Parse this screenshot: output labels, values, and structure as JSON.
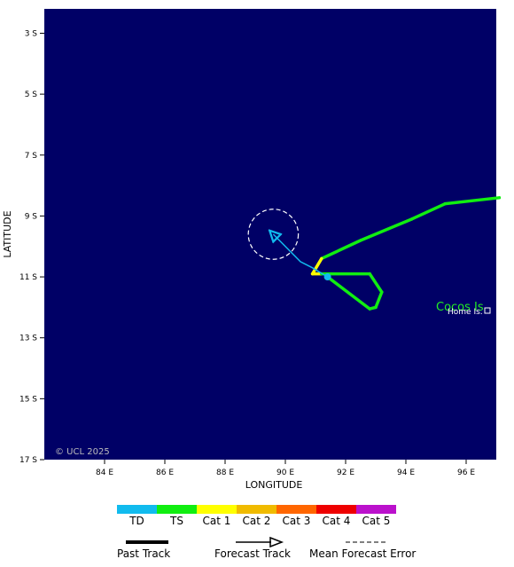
{
  "map": {
    "copyright": "© UCL 2025",
    "xlabel": "LONGITUDE",
    "ylabel": "LATITUDE",
    "lon_range": [
      82,
      97
    ],
    "lat_range": [
      -17,
      -2.2
    ],
    "ocean_color": "#000066",
    "lon_ticks": [
      {
        "value": 84,
        "label": "84 E"
      },
      {
        "value": 86,
        "label": "86 E"
      },
      {
        "value": 88,
        "label": "88 E"
      },
      {
        "value": 90,
        "label": "90 E"
      },
      {
        "value": 92,
        "label": "92 E"
      },
      {
        "value": 94,
        "label": "94 E"
      },
      {
        "value": 96,
        "label": "96 E"
      }
    ],
    "lat_ticks": [
      {
        "value": -3,
        "label": "3 S"
      },
      {
        "value": -5,
        "label": "5 S"
      },
      {
        "value": -7,
        "label": "7 S"
      },
      {
        "value": -9,
        "label": "9 S"
      },
      {
        "value": -11,
        "label": "11 S"
      },
      {
        "value": -13,
        "label": "13 S"
      },
      {
        "value": -15,
        "label": "15 S"
      },
      {
        "value": -17,
        "label": "17 S"
      }
    ],
    "place": {
      "name": "Cocos Is",
      "sub": "Home Is.",
      "lon": 96.8,
      "lat": -12.1
    },
    "past_track": [
      {
        "lon": 97.1,
        "lat": -8.4,
        "cat": "TS"
      },
      {
        "lon": 95.3,
        "lat": -8.6,
        "cat": "TS"
      },
      {
        "lon": 94.2,
        "lat": -9.1,
        "cat": "TS"
      },
      {
        "lon": 92.5,
        "lat": -9.8,
        "cat": "TS"
      },
      {
        "lon": 91.2,
        "lat": -10.4,
        "cat": "TS"
      },
      {
        "lon": 90.9,
        "lat": -10.9,
        "cat": "Cat 1"
      },
      {
        "lon": 91.2,
        "lat": -10.9,
        "cat": "Cat 1"
      },
      {
        "lon": 92.8,
        "lat": -10.9,
        "cat": "TS"
      },
      {
        "lon": 93.2,
        "lat": -11.5,
        "cat": "TS"
      },
      {
        "lon": 93.0,
        "lat": -12.0,
        "cat": "TS"
      },
      {
        "lon": 92.8,
        "lat": -12.05,
        "cat": "TS"
      },
      {
        "lon": 91.4,
        "lat": -11.0,
        "cat": "TS"
      }
    ],
    "current_position": {
      "lon": 91.4,
      "lat": -11.0,
      "cat": "TD"
    },
    "forecast_track": [
      {
        "lon": 91.4,
        "lat": -11.0
      },
      {
        "lon": 90.9,
        "lat": -10.7
      },
      {
        "lon": 90.5,
        "lat": -10.5
      },
      {
        "lon": 89.6,
        "lat": -9.6
      }
    ],
    "error_circle": {
      "lon": 89.6,
      "lat": -9.6,
      "radius_deg": 0.83
    }
  },
  "legend": {
    "categories": [
      {
        "label": "TD",
        "color": "#11bbee"
      },
      {
        "label": "TS",
        "color": "#11ee11"
      },
      {
        "label": "Cat 1",
        "color": "#ffff00"
      },
      {
        "label": "Cat 2",
        "color": "#f0bb00"
      },
      {
        "label": "Cat 3",
        "color": "#ff6600"
      },
      {
        "label": "Cat 4",
        "color": "#ee0000"
      },
      {
        "label": "Cat 5",
        "color": "#bb11cc"
      }
    ],
    "past_track_label": "Past Track",
    "forecast_track_label": "Forecast Track",
    "error_label": "Mean Forecast Error"
  }
}
